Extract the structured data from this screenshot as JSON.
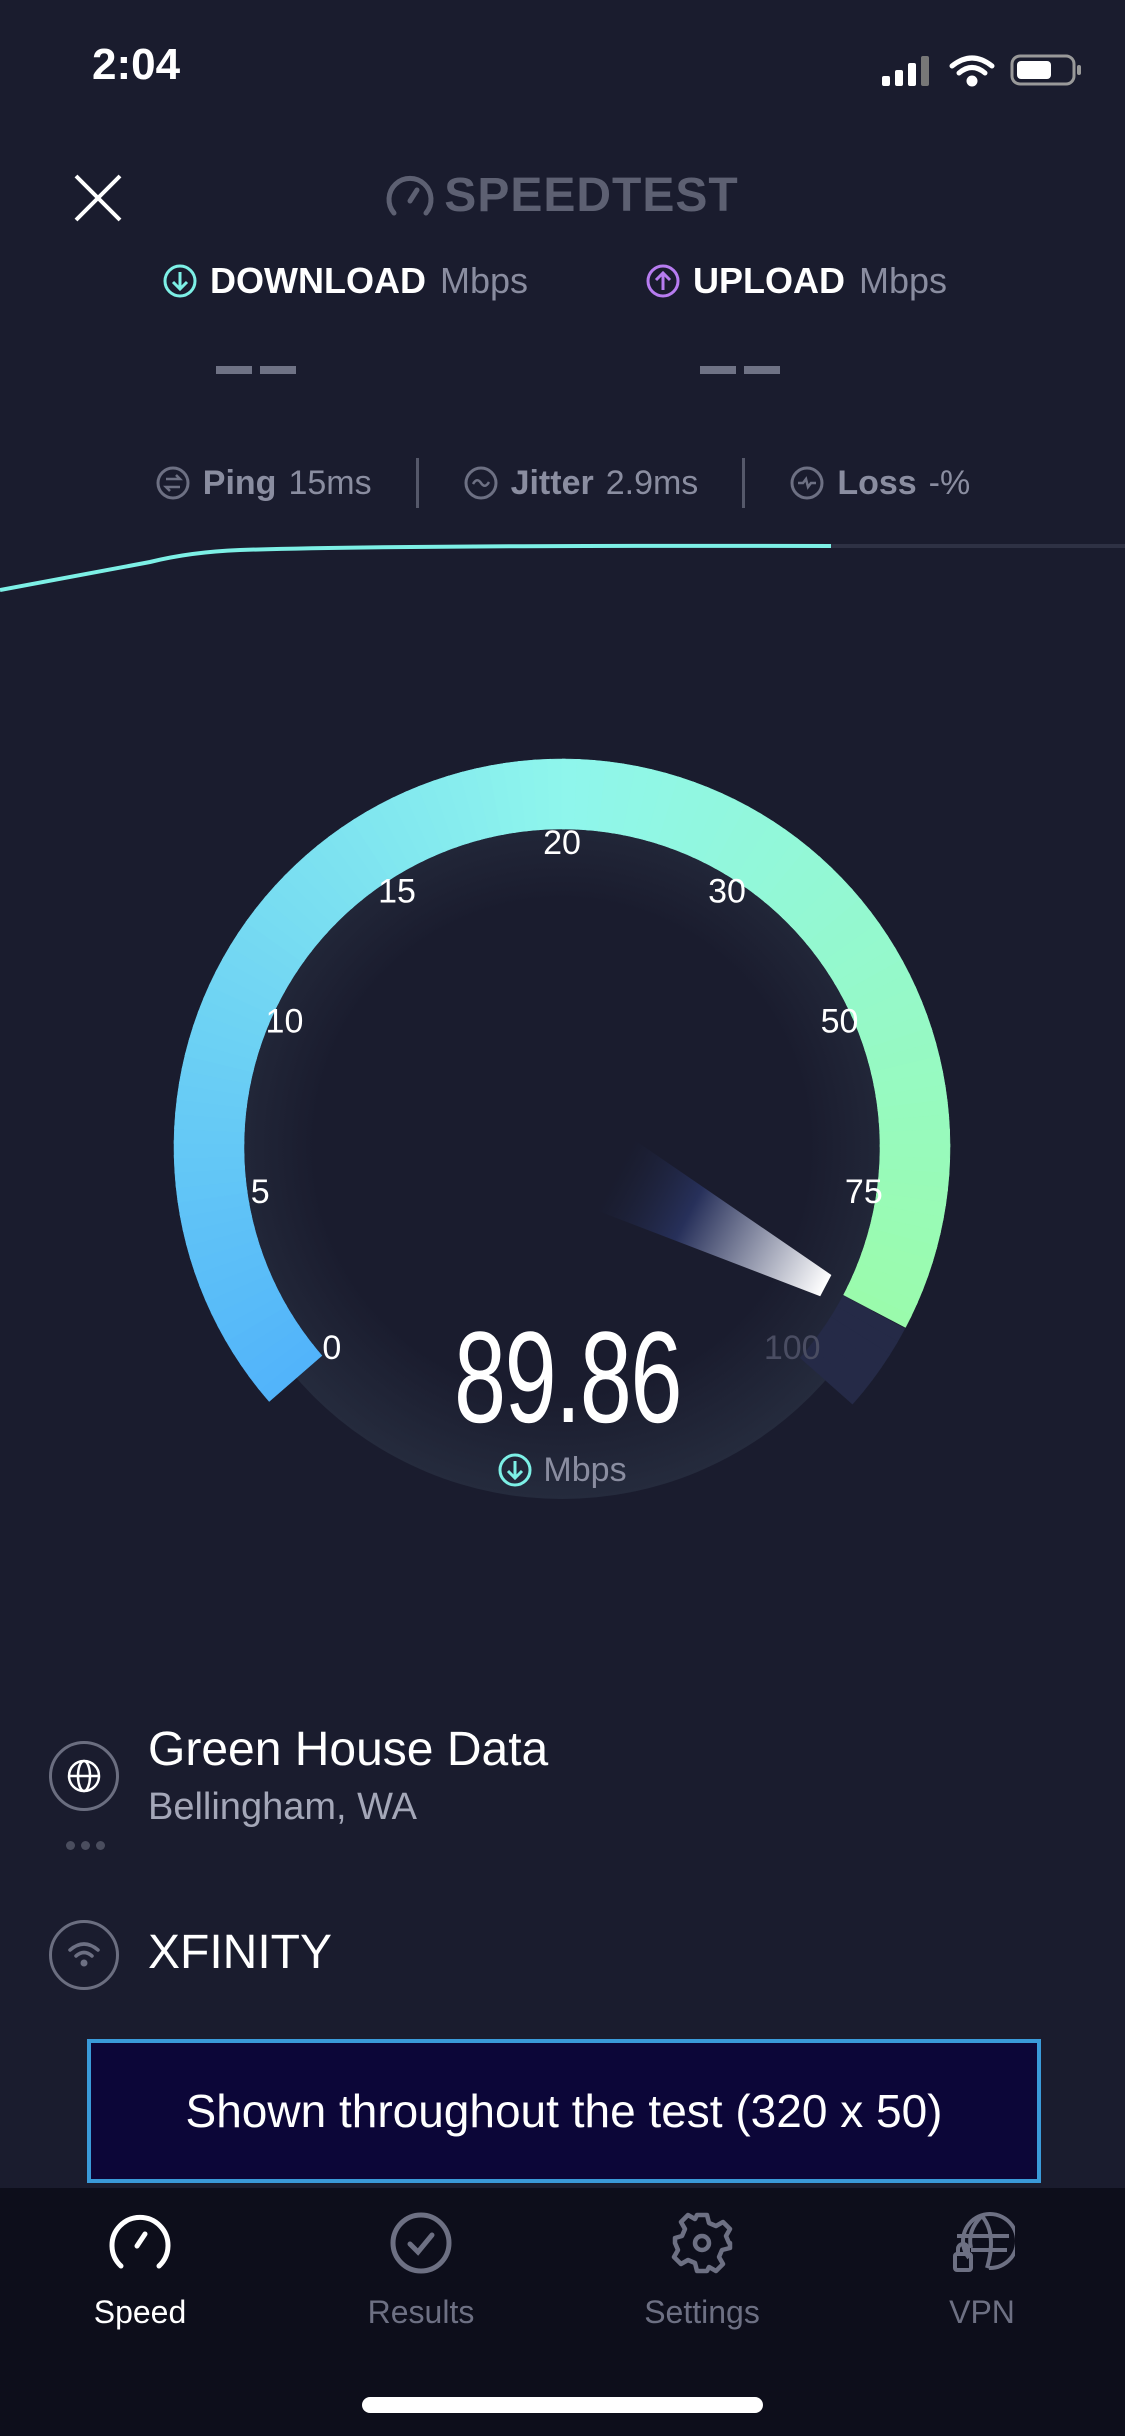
{
  "status_bar": {
    "time": "2:04"
  },
  "header": {
    "logo": "SPEEDTEST",
    "close_icon": "close-icon"
  },
  "results": {
    "download": {
      "label": "DOWNLOAD",
      "unit": "Mbps",
      "value": "– –",
      "color": "#7df0e6"
    },
    "upload": {
      "label": "UPLOAD",
      "unit": "Mbps",
      "value": "– –",
      "color": "#b77cf0"
    }
  },
  "metrics": [
    {
      "label": "Ping",
      "value": "15ms",
      "icon": "ping-icon"
    },
    {
      "label": "Jitter",
      "value": "2.9ms",
      "icon": "jitter-icon"
    },
    {
      "label": "Loss",
      "value": "-%",
      "icon": "loss-icon"
    }
  ],
  "gauge": {
    "ticks": [
      "0",
      "5",
      "10",
      "15",
      "20",
      "30",
      "50",
      "75",
      "100"
    ],
    "value": 89.86,
    "value_text": "89.86",
    "unit": "Mbps",
    "colors": {
      "start": "#52b4fa",
      "mid": "#8ff6ec",
      "end": "#9cfca4",
      "track": "#252a47"
    }
  },
  "server": {
    "name": "Green House Data",
    "location": "Bellingham, WA"
  },
  "isp": {
    "name": "XFINITY"
  },
  "ad": {
    "text": "Shown throughout the test (320 x 50)"
  },
  "tabs": [
    {
      "label": "Speed",
      "icon": "speedometer-icon",
      "active": true
    },
    {
      "label": "Results",
      "icon": "check-circle-icon",
      "active": false
    },
    {
      "label": "Settings",
      "icon": "gear-icon",
      "active": false
    },
    {
      "label": "VPN",
      "icon": "vpn-globe-lock-icon",
      "active": false
    }
  ]
}
